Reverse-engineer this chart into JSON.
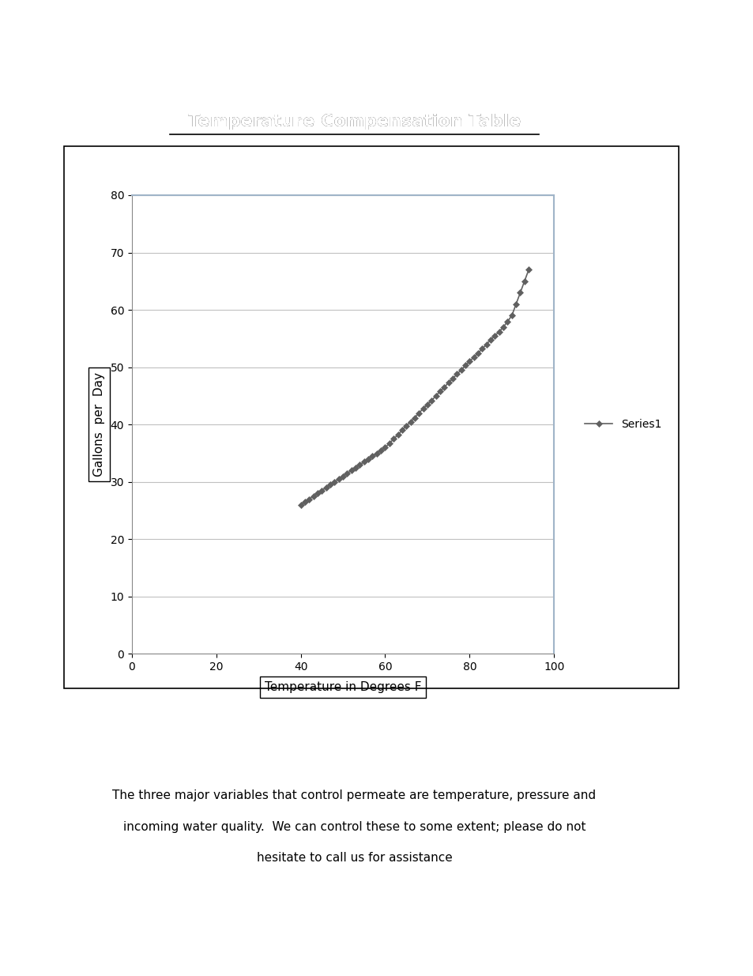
{
  "title": "Temperature Compensation Table",
  "xlabel": "Temperature in Degrees F",
  "ylabel": "Gallons  per  Day",
  "x_data": [
    40,
    41,
    42,
    43,
    44,
    45,
    46,
    47,
    48,
    49,
    50,
    51,
    52,
    53,
    54,
    55,
    56,
    57,
    58,
    59,
    60,
    61,
    62,
    63,
    64,
    65,
    66,
    67,
    68,
    69,
    70,
    71,
    72,
    73,
    74,
    75,
    76,
    77,
    78,
    79,
    80,
    81,
    82,
    83,
    84,
    85,
    86,
    87,
    88,
    89,
    90,
    91,
    92,
    93,
    94
  ],
  "y_data": [
    26,
    26.5,
    27,
    27.5,
    28,
    28.5,
    29,
    29.5,
    30,
    30.5,
    31,
    31.5,
    32,
    32.5,
    33,
    33.5,
    34,
    34.5,
    35,
    35.5,
    36,
    36.7,
    37.5,
    38.2,
    39,
    39.8,
    40.5,
    41.2,
    42,
    42.8,
    43.5,
    44.2,
    45,
    45.8,
    46.5,
    47.3,
    48,
    48.8,
    49.5,
    50.3,
    51,
    51.8,
    52.5,
    53.2,
    54,
    54.8,
    55.5,
    56.2,
    57,
    58,
    59,
    61,
    63,
    65,
    67
  ],
  "line_color": "#606060",
  "marker_color": "#606060",
  "legend_label": "Series1",
  "xlim": [
    0,
    100
  ],
  "ylim": [
    0,
    80
  ],
  "xticks": [
    0,
    20,
    40,
    60,
    80,
    100
  ],
  "yticks": [
    0,
    10,
    20,
    30,
    40,
    50,
    60,
    70,
    80
  ],
  "background_color": "#ffffff",
  "grid_color": "#c0c0c0",
  "border_color": "#a0b4c8",
  "title_fontsize": 16,
  "axis_label_fontsize": 11,
  "tick_fontsize": 10,
  "footnote_line1": "The three major variables that control permeate are temperature, pressure and",
  "footnote_line2": "incoming water quality.  We can control these to some extent; please do not",
  "footnote_line3": "hesitate to call us for assistance"
}
